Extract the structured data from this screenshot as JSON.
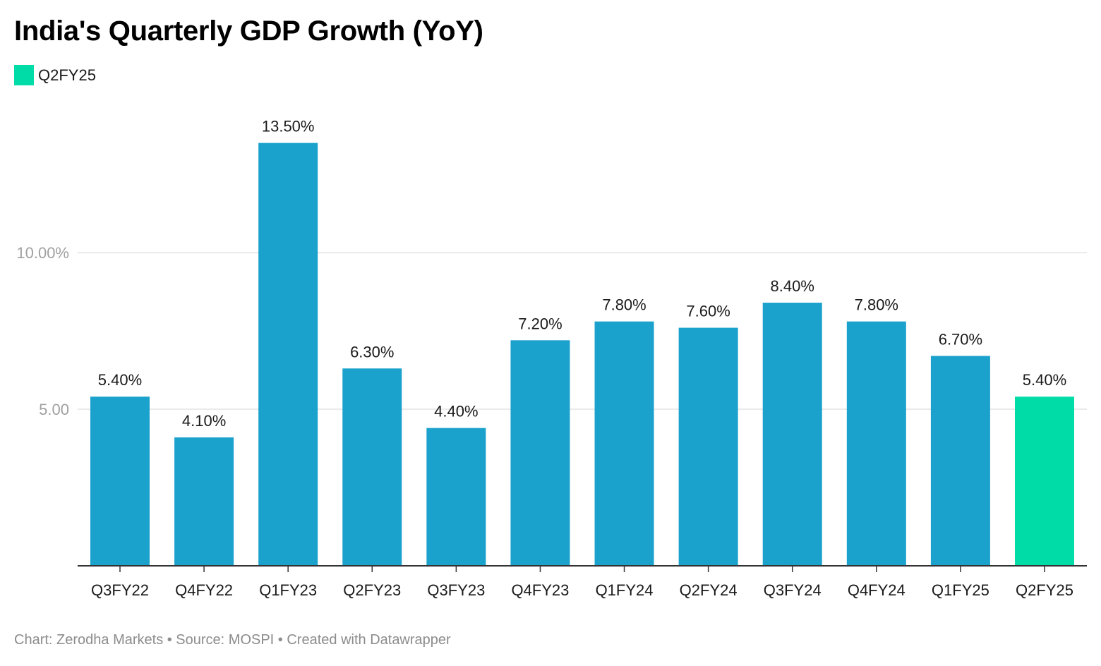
{
  "chart_data": {
    "type": "bar",
    "title": "India's Quarterly GDP Growth (YoY)",
    "xlabel": "",
    "ylabel": "",
    "categories": [
      "Q3FY22",
      "Q4FY22",
      "Q1FY23",
      "Q2FY23",
      "Q3FY23",
      "Q4FY23",
      "Q1FY24",
      "Q2FY24",
      "Q3FY24",
      "Q4FY24",
      "Q1FY25",
      "Q2FY25"
    ],
    "values": [
      5.4,
      4.1,
      13.5,
      6.3,
      4.4,
      7.2,
      7.8,
      7.6,
      8.4,
      7.8,
      6.7,
      5.4
    ],
    "value_labels": [
      "5.40%",
      "4.10%",
      "13.50%",
      "6.30%",
      "4.40%",
      "7.20%",
      "7.80%",
      "7.60%",
      "8.40%",
      "7.80%",
      "6.70%",
      "5.40%"
    ],
    "ylim": [
      0,
      14
    ],
    "yticks": [
      {
        "value": 5,
        "label": "5.00"
      },
      {
        "value": 10,
        "label": "10.00%"
      }
    ],
    "highlight": {
      "category": "Q2FY25",
      "label": "Q2FY25"
    },
    "grid": true,
    "legend_placement": "top-left",
    "colors": {
      "bar": "#1aa1cc",
      "highlight": "#00dca8",
      "grid": "#e3e3e3",
      "axis": "#333333",
      "tick_label": "#a0a0a0"
    }
  },
  "footer": {
    "text": "Chart: Zerodha Markets • Source: MOSPI • Created with Datawrapper"
  }
}
